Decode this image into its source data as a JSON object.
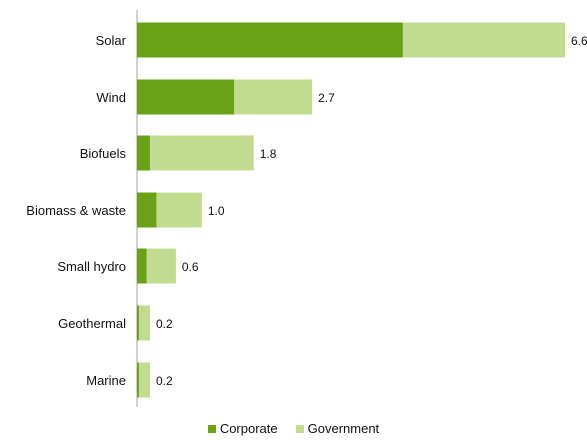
{
  "chart_data": {
    "type": "bar",
    "orientation": "horizontal",
    "stacked": true,
    "categories": [
      "Solar",
      "Wind",
      "Biofuels",
      "Biomass & waste",
      "Small hydro",
      "Geothermal",
      "Marine"
    ],
    "series": [
      {
        "name": "Corporate",
        "color": "#6aa116",
        "values": [
          4.1,
          1.5,
          0.2,
          0.3,
          0.15,
          0.03,
          0.03
        ]
      },
      {
        "name": "Government",
        "color": "#c1dc91",
        "values": [
          2.5,
          1.2,
          1.6,
          0.7,
          0.45,
          0.17,
          0.17
        ]
      }
    ],
    "totals": [
      6.6,
      2.7,
      1.8,
      1.0,
      0.6,
      0.2,
      0.2
    ],
    "total_labels": [
      "6.6",
      "2.7",
      "1.8",
      "1.0",
      "0.6",
      "0.2",
      "0.2"
    ],
    "xlim": [
      0,
      6.6
    ],
    "grid": false,
    "legend_position": "bottom"
  }
}
